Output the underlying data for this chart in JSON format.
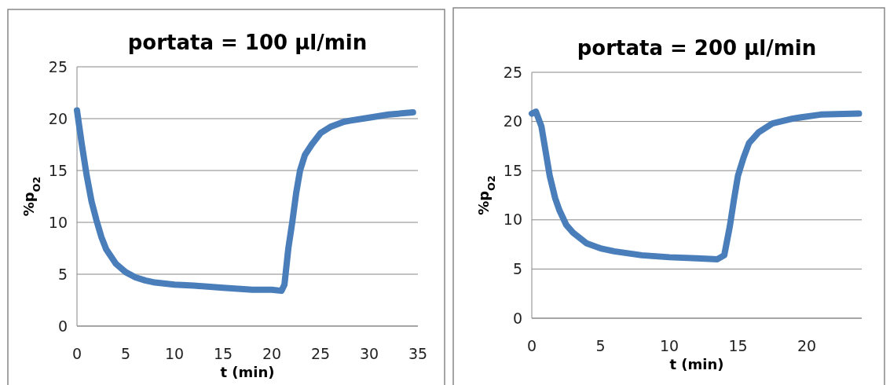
{
  "chart_data": [
    {
      "type": "line",
      "title": "portata = 100 µl/min",
      "xlabel": "t (min)",
      "ylabel": "%p$_{O2}$",
      "xlim": [
        0,
        35
      ],
      "xticks": [
        0,
        5,
        10,
        15,
        20,
        25,
        30,
        35
      ],
      "ylim": [
        0,
        25
      ],
      "yticks": [
        0,
        5,
        10,
        15,
        20,
        25
      ],
      "grid": "y",
      "marker": "none",
      "line_style": "solid",
      "series": [
        {
          "color": "#4a7ebb",
          "x": [
            0,
            0.5,
            1,
            1.5,
            2,
            2.5,
            3,
            4,
            5,
            6,
            7,
            8,
            10,
            12,
            15,
            18,
            20,
            21,
            21.3,
            21.7,
            22.1,
            22.5,
            22.9,
            23.4,
            24.1,
            25,
            26,
            27.4,
            28,
            30,
            32,
            34.5
          ],
          "values": [
            20.8,
            17.5,
            14.5,
            12,
            10.2,
            8.6,
            7.4,
            6,
            5.2,
            4.7,
            4.4,
            4.2,
            4,
            3.9,
            3.7,
            3.5,
            3.5,
            3.4,
            4,
            7.5,
            10,
            12.8,
            15,
            16.5,
            17.5,
            18.6,
            19.2,
            19.7,
            19.8,
            20.1,
            20.4,
            20.6
          ]
        }
      ]
    },
    {
      "type": "line",
      "title": "portata = 200 µl/min",
      "xlabel": "t (min)",
      "ylabel": "%p$_{O2}$",
      "xlim": [
        0,
        24
      ],
      "xticks": [
        0,
        5,
        10,
        15,
        20
      ],
      "ylim": [
        0,
        25
      ],
      "yticks": [
        0,
        5,
        10,
        15,
        20,
        25
      ],
      "grid": "y",
      "marker": "none",
      "line_style": "solid",
      "series": [
        {
          "color": "#4a7ebb",
          "x": [
            0,
            0.3,
            0.7,
            1,
            1.3,
            1.7,
            2,
            2.5,
            3,
            4,
            5,
            6,
            8,
            10,
            12,
            13.5,
            14,
            14.4,
            14.7,
            15,
            15.4,
            15.8,
            16.5,
            17.5,
            19,
            21,
            23.8
          ],
          "values": [
            20.8,
            21,
            19.5,
            17,
            14.5,
            12.2,
            11,
            9.5,
            8.7,
            7.6,
            7.1,
            6.8,
            6.4,
            6.2,
            6.1,
            6,
            6.4,
            9.3,
            12,
            14.5,
            16.3,
            17.8,
            18.9,
            19.8,
            20.3,
            20.7,
            20.8
          ]
        }
      ]
    }
  ]
}
